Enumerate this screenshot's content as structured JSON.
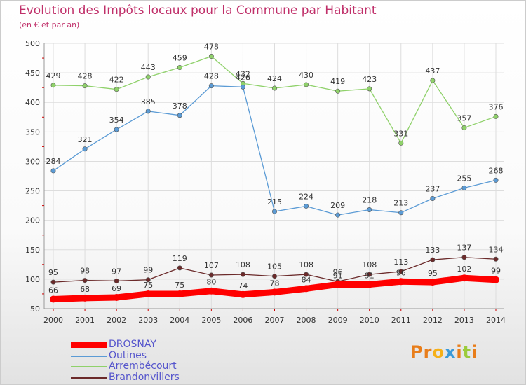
{
  "title": "Evolution des Impôts locaux pour la Commune par Habitant",
  "subtitle": "(en € et par an)",
  "logo": "Proxiti",
  "colors": {
    "title": "#c0306a",
    "axis_text": "#333333",
    "grid": "#dddddd",
    "tick_red": "#cc0000",
    "logo": [
      "#e87d1a",
      "#e87d1a",
      "#f5b019",
      "#3a9ad9",
      "#e87d1a",
      "#9bcb3b",
      "#e87d1a"
    ]
  },
  "chart_data": {
    "type": "line",
    "categories": [
      "2000",
      "2001",
      "2002",
      "2003",
      "2004",
      "2005",
      "2006",
      "2007",
      "2008",
      "2009",
      "2010",
      "2011",
      "2012",
      "2013",
      "2014"
    ],
    "ylim": [
      50,
      500
    ],
    "yticks": [
      50,
      100,
      150,
      200,
      250,
      300,
      350,
      400,
      450,
      500
    ],
    "grid": true,
    "legend_position": "bottom-left",
    "series": [
      {
        "name": "DROSNAY",
        "color": "#ff0000",
        "values": [
          66,
          68,
          69,
          75,
          75,
          80,
          74,
          78,
          84,
          91,
          91,
          96,
          95,
          102,
          99
        ]
      },
      {
        "name": "Outines",
        "color": "#5b9bd5",
        "values": [
          284,
          321,
          354,
          385,
          378,
          428,
          426,
          215,
          224,
          209,
          218,
          213,
          237,
          255,
          268
        ]
      },
      {
        "name": "Arrembécourt",
        "color": "#8fd16a",
        "values": [
          429,
          428,
          422,
          443,
          459,
          478,
          432,
          424,
          430,
          419,
          423,
          331,
          437,
          357,
          376
        ]
      },
      {
        "name": "Brandonvillers",
        "color": "#6b2a2a",
        "values": [
          95,
          98,
          97,
          99,
          119,
          107,
          108,
          105,
          108,
          96,
          108,
          113,
          133,
          137,
          134
        ]
      }
    ]
  }
}
